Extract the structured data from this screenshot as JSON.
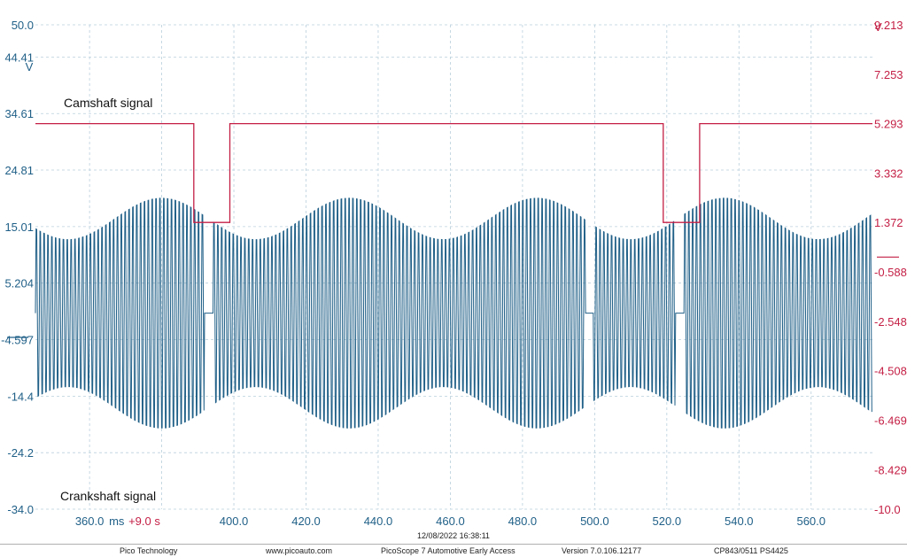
{
  "chart_data": {
    "type": "line",
    "left_axis": {
      "unit": "V",
      "ticks": [
        "50.0",
        "44.41",
        "34.61",
        "24.81",
        "15.01",
        "5.204",
        "-4.597",
        "-14.4",
        "-24.2",
        "-34.0"
      ],
      "ylim": [
        -34.0,
        50.0
      ],
      "color": "#1f5f87"
    },
    "right_axis": {
      "unit": "V",
      "ticks": [
        "9.213",
        "7.253",
        "5.293",
        "3.332",
        "1.372",
        "-0.588",
        "-2.548",
        "-4.508",
        "-6.469",
        "-8.429",
        "-10.0"
      ],
      "ylim": [
        -10.0,
        9.213
      ],
      "color": "#c41f45"
    },
    "x_axis": {
      "unit": "ms",
      "offset_label": "+9.0 s",
      "tick_labels": [
        "360.0",
        "400.0",
        "420.0",
        "440.0",
        "460.0",
        "480.0",
        "500.0",
        "520.0",
        "540.0",
        "560.0"
      ],
      "xlim": [
        345,
        577
      ]
    },
    "grid": true,
    "series": [
      {
        "name": "Camshaft signal",
        "axis": "right",
        "color": "#c41f45",
        "high_level": 5.293,
        "low_level": 1.372,
        "low_intervals": [
          [
            388.9,
            398.9
          ],
          [
            519.0,
            529.1
          ]
        ]
      },
      {
        "name": "Crankshaft signal",
        "axis": "left",
        "color": "#1f5f87",
        "peak_amplitude": 23.0,
        "tooth_period": 1.07,
        "missing_tooth_at": [
          393.0,
          498.5,
          523.5
        ]
      }
    ]
  },
  "footer": {
    "company": "Pico Technology",
    "website": "www.picoauto.com",
    "timestamp": "12/08/2022 16:38:11",
    "app": "PicoScope 7 Automotive Early Access",
    "version": "Version 7.0.106.12177",
    "device": "CP843/0511 PS4425"
  }
}
